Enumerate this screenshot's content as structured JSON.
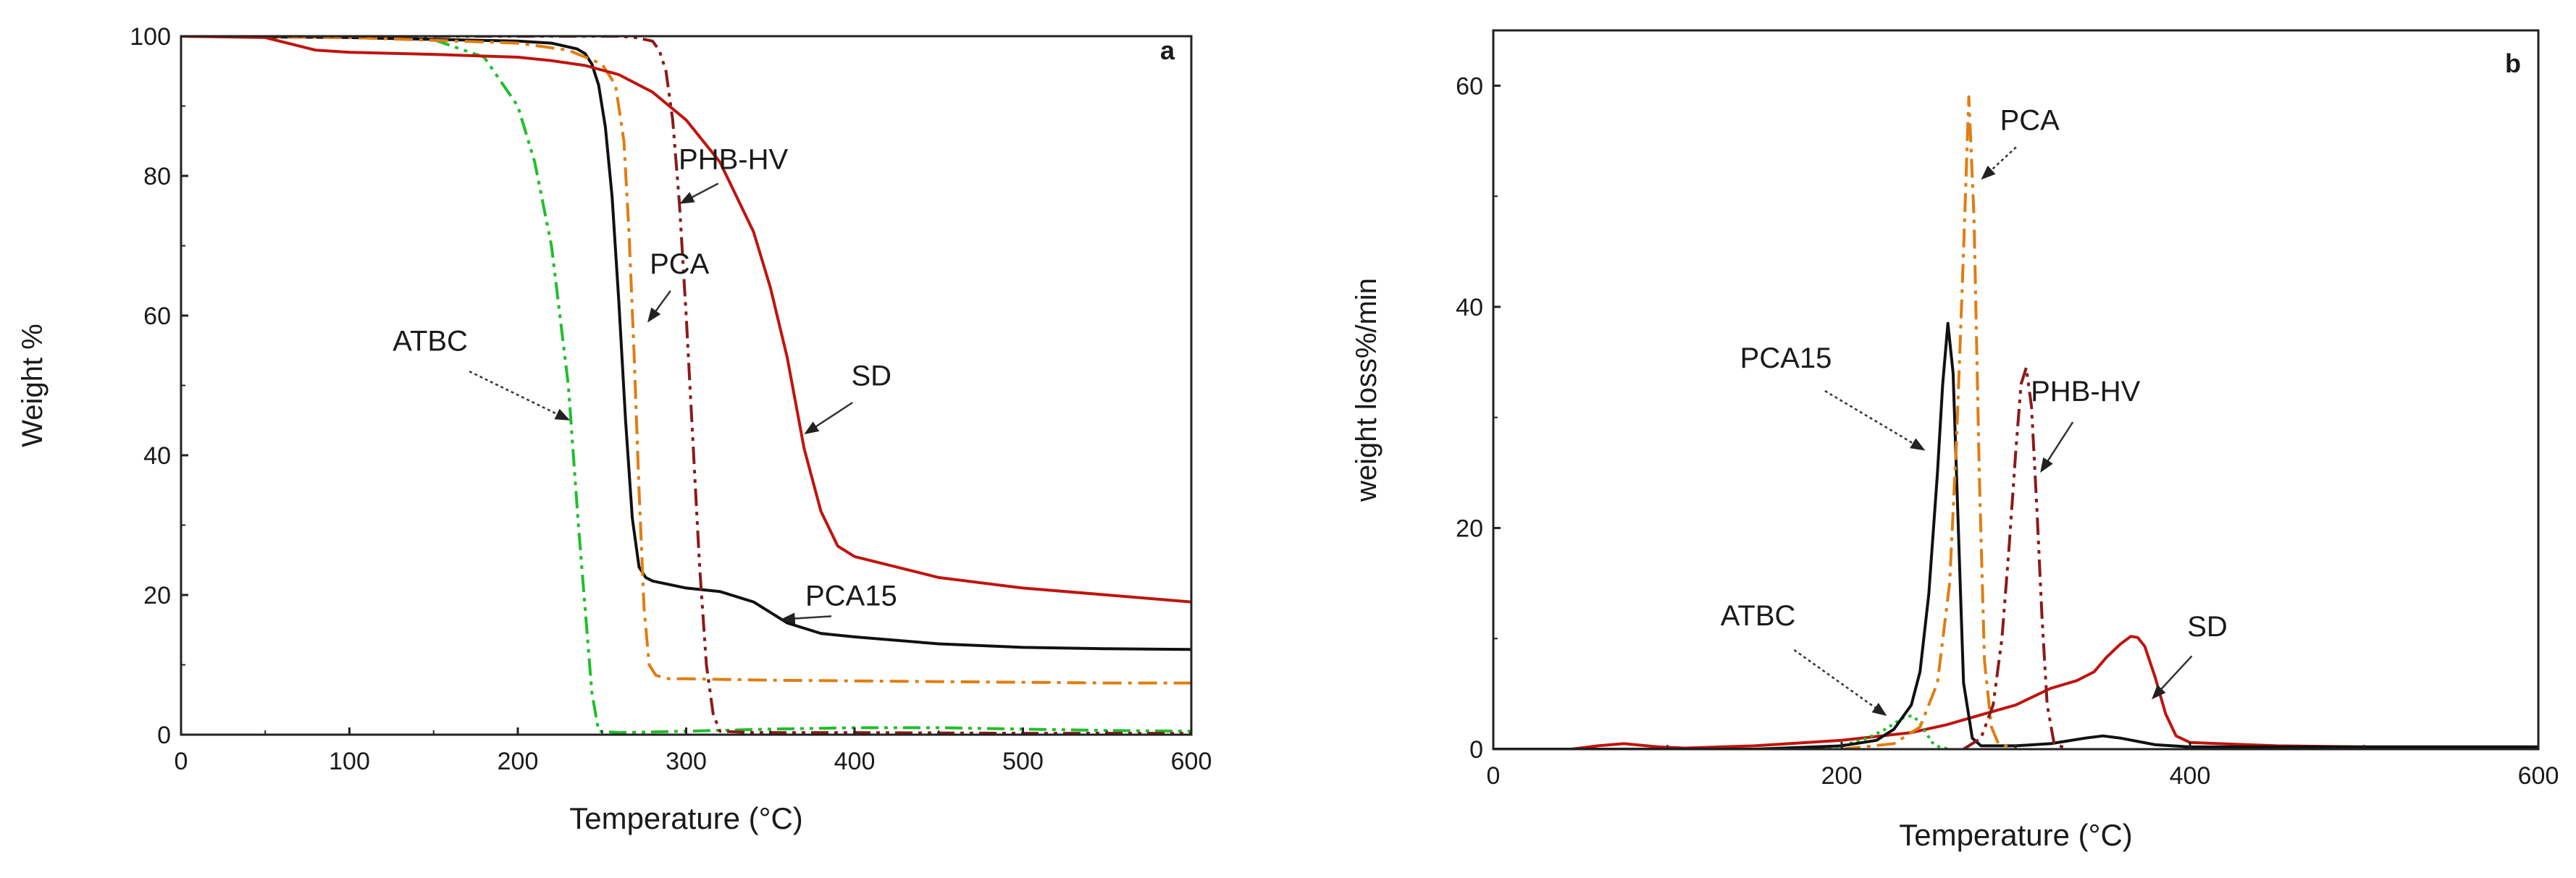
{
  "chart_data": [
    {
      "type": "line",
      "panel_label": "a",
      "xlabel": "Temperature (°C)",
      "ylabel": "Weight %",
      "xlim": [
        0,
        600
      ],
      "ylim": [
        0,
        100
      ],
      "xticks": [
        0,
        100,
        200,
        300,
        400,
        500,
        600
      ],
      "yticks": [
        0,
        20,
        40,
        60,
        80,
        100
      ],
      "series": [
        {
          "name": "ATBC",
          "color": "#1fbf2a",
          "style": "dashdotdot",
          "x": [
            0,
            100,
            150,
            180,
            200,
            210,
            220,
            230,
            236,
            240,
            244,
            248,
            260,
            300,
            350,
            400,
            450,
            500,
            550,
            600
          ],
          "y": [
            100,
            100,
            99.5,
            97,
            90,
            82,
            70,
            50,
            30,
            18,
            6,
            0.5,
            0.3,
            0.5,
            0.8,
            1,
            1,
            0.8,
            0.6,
            0.5
          ]
        },
        {
          "name": "PCA15",
          "color": "#111111",
          "style": "solid",
          "x": [
            0,
            100,
            200,
            220,
            235,
            240,
            244,
            248,
            252,
            256,
            260,
            264,
            268,
            272,
            276,
            280,
            300,
            320,
            340,
            360,
            380,
            400,
            450,
            500,
            550,
            600
          ],
          "y": [
            100,
            99.8,
            99.3,
            99,
            98.2,
            97.5,
            96,
            93,
            87,
            77,
            62,
            45,
            31,
            24,
            22.5,
            22,
            21,
            20.5,
            19,
            16,
            14.5,
            14,
            13,
            12.5,
            12.3,
            12.2
          ]
        },
        {
          "name": "PCA",
          "color": "#e07d10",
          "style": "dashdot",
          "x": [
            0,
            100,
            200,
            230,
            250,
            258,
            263,
            266,
            269,
            272,
            275,
            278,
            282,
            290,
            300,
            350,
            400,
            450,
            500,
            550,
            600
          ],
          "y": [
            100,
            99.8,
            99,
            98,
            96,
            93,
            85,
            72,
            55,
            35,
            18,
            10,
            8.5,
            8,
            8,
            7.8,
            7.7,
            7.6,
            7.5,
            7.4,
            7.4
          ]
        },
        {
          "name": "PHB-HV",
          "color": "#8b1a1a",
          "style": "dashdotdot",
          "x": [
            0,
            100,
            200,
            260,
            270,
            280,
            284,
            288,
            292,
            296,
            300,
            304,
            308,
            312,
            316,
            320,
            340,
            400,
            500,
            600
          ],
          "y": [
            100,
            100,
            100,
            100,
            99.8,
            99.3,
            98,
            95,
            88,
            76,
            60,
            42,
            24,
            10,
            3,
            0.5,
            0.3,
            0.3,
            0.2,
            0.2
          ]
        },
        {
          "name": "SD",
          "color": "#c0140e",
          "style": "solid",
          "x": [
            0,
            50,
            60,
            80,
            100,
            150,
            200,
            220,
            240,
            260,
            280,
            300,
            320,
            340,
            350,
            360,
            370,
            380,
            390,
            400,
            450,
            500,
            550,
            600
          ],
          "y": [
            100,
            99.8,
            99.2,
            98,
            97.7,
            97.4,
            97,
            96.5,
            95.8,
            94.5,
            92,
            88,
            82,
            72,
            64,
            54,
            41,
            32,
            27,
            25.5,
            22.5,
            21,
            20,
            19
          ]
        }
      ],
      "annotations": [
        {
          "text": "PHB-HV",
          "x": 328,
          "y": 81,
          "arrow_to": [
            296,
            76
          ]
        },
        {
          "text": "PCA",
          "x": 296,
          "y": 66,
          "arrow_to": [
            277,
            59
          ]
        },
        {
          "text": "SD",
          "x": 410,
          "y": 50,
          "arrow_to": [
            370,
            43
          ]
        },
        {
          "text": "ATBC",
          "x": 148,
          "y": 55,
          "arrow_to": [
            231,
            45
          ]
        },
        {
          "text": "PCA15",
          "x": 398,
          "y": 18.5,
          "arrow_to": [
            356,
            16.5
          ]
        }
      ]
    },
    {
      "type": "line",
      "panel_label": "b",
      "xlabel": "Temperature (°C)",
      "ylabel": "weight loss%/min",
      "xlim": [
        0,
        600
      ],
      "ylim": [
        0,
        65
      ],
      "xticks": [
        0,
        200,
        400,
        600
      ],
      "yticks": [
        0,
        20,
        40,
        60
      ],
      "series": [
        {
          "name": "SD",
          "color": "#c0140e",
          "style": "solid",
          "x": [
            45,
            60,
            75,
            95,
            110,
            150,
            200,
            240,
            260,
            280,
            300,
            320,
            335,
            345,
            352,
            360,
            366,
            370,
            374,
            380,
            386,
            392,
            400,
            450,
            500,
            600
          ],
          "y": [
            0,
            0.3,
            0.5,
            0.2,
            0.1,
            0.3,
            0.8,
            1.5,
            2.2,
            3.1,
            4,
            5.5,
            6.2,
            7,
            8.3,
            9.5,
            10.2,
            10.1,
            9.3,
            6.5,
            3.2,
            1.2,
            0.6,
            0.3,
            0.2,
            0.2
          ]
        },
        {
          "name": "ATBC",
          "color": "#1fbf2a",
          "style": "dotted",
          "x": [
            180,
            200,
            215,
            225,
            232,
            236,
            240,
            244,
            248,
            252,
            256,
            262
          ],
          "y": [
            0,
            0.3,
            1,
            1.8,
            2.5,
            2.9,
            3,
            2.6,
            1.6,
            0.6,
            0.2,
            0
          ]
        },
        {
          "name": "PCA15",
          "color": "#111111",
          "style": "solid",
          "x": [
            0,
            150,
            200,
            220,
            230,
            240,
            245,
            250,
            255,
            258,
            261,
            264,
            267,
            270,
            275,
            280,
            300,
            320,
            340,
            350,
            360,
            380,
            400,
            600
          ],
          "y": [
            0,
            0,
            0.3,
            0.8,
            1.8,
            4,
            7,
            14,
            25,
            33,
            38.5,
            34,
            20,
            6,
            1,
            0.3,
            0.3,
            0.5,
            1,
            1.2,
            1,
            0.4,
            0.2,
            0.2
          ]
        },
        {
          "name": "PCA",
          "color": "#e07d10",
          "style": "dashdot",
          "x": [
            200,
            230,
            245,
            255,
            262,
            266,
            270,
            273,
            276,
            279,
            282,
            286,
            290,
            300
          ],
          "y": [
            0,
            0.5,
            2,
            6,
            15,
            28,
            45,
            59,
            48,
            25,
            8,
            2,
            0.5,
            0
          ]
        },
        {
          "name": "PHB-HV",
          "color": "#8b1a1a",
          "style": "dashdotdot",
          "x": [
            270,
            280,
            287,
            292,
            296,
            300,
            303,
            306,
            309,
            312,
            315,
            318,
            322,
            330
          ],
          "y": [
            0,
            1,
            4,
            10,
            18,
            27,
            33,
            34.5,
            31,
            22,
            12,
            4,
            0.5,
            0
          ]
        }
      ],
      "annotations": [
        {
          "text": "PCA",
          "x": 308,
          "y": 56,
          "arrow_to": [
            280,
            51.5
          ]
        },
        {
          "text": "PCA15",
          "x": 168,
          "y": 34.5,
          "arrow_to": [
            248,
            27
          ]
        },
        {
          "text": "PHB-HV",
          "x": 340,
          "y": 31.5,
          "arrow_to": [
            314,
            25
          ]
        },
        {
          "text": "ATBC",
          "x": 152,
          "y": 11.2,
          "arrow_to": [
            226,
            3
          ]
        },
        {
          "text": "SD",
          "x": 410,
          "y": 10.2,
          "arrow_to": [
            378,
            4.5
          ]
        }
      ]
    }
  ]
}
